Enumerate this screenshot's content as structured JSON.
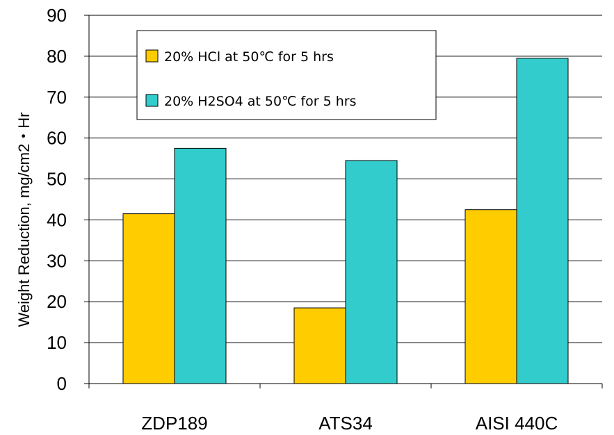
{
  "chart_data": {
    "type": "bar",
    "categories": [
      "ZDP189",
      "ATS34",
      "AISI 440C"
    ],
    "series": [
      {
        "name": "20% HCl at 50℃ for 5 hrs",
        "values": [
          41.5,
          18.5,
          42.5
        ],
        "color": "#FFCC00"
      },
      {
        "name": "20% H2SO4 at 50℃ for 5 hrs",
        "values": [
          57.5,
          54.5,
          79.5
        ],
        "color": "#33CCCC"
      }
    ],
    "title": "",
    "xlabel": "",
    "ylabel": "Weight Reduction, mg/cm2・Hr",
    "ylim": [
      0,
      90
    ],
    "yticks": [
      0,
      10,
      20,
      30,
      40,
      50,
      60,
      70,
      80,
      90
    ],
    "grid": true,
    "legend_position": "top-left"
  }
}
